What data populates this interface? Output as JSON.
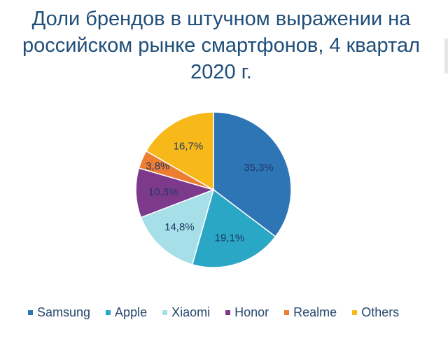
{
  "title_lines": [
    "Доли брендов в штучном выражении на",
    "российском рынке смартфонов, 4 квартал",
    "2020 г."
  ],
  "chart_data": {
    "type": "pie",
    "title": "Доли брендов в штучном выражении на российском рынке смартфонов, 4 квартал 2020 г.",
    "slices": [
      {
        "name": "Samsung",
        "value": 35.3,
        "label": "35,3%",
        "color": "#2e75b6"
      },
      {
        "name": "Apple",
        "value": 19.1,
        "label": "19,1%",
        "color": "#29a7c4"
      },
      {
        "name": "Xiaomi",
        "value": 14.8,
        "label": "14,8%",
        "color": "#a6dfe8"
      },
      {
        "name": "Honor",
        "value": 10.3,
        "label": "10,3%",
        "color": "#7d3a8c"
      },
      {
        "name": "Realme",
        "value": 3.8,
        "label": "3,8%",
        "color": "#ed7d31"
      },
      {
        "name": "Others",
        "value": 16.7,
        "label": "16,7%",
        "color": "#f6b919"
      }
    ],
    "legend_position": "bottom"
  }
}
